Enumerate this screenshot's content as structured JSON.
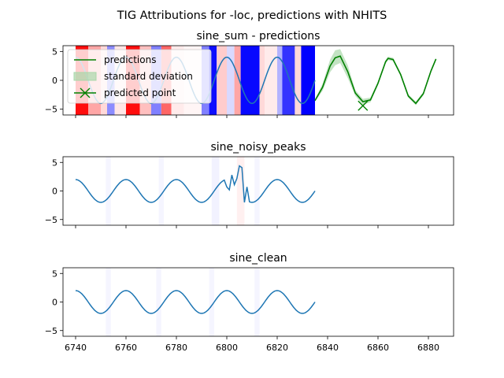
{
  "suptitle": "TIG Attributions for -loc, predictions with NHITS",
  "colors": {
    "series": "#1f77b4",
    "prediction": "#008000",
    "band": "#a9d7a9",
    "positive_attr": "#0000ff",
    "negative_attr": "#ff0000"
  },
  "chart_data": [
    {
      "type": "line",
      "title": "sine_sum - predictions",
      "xlim": [
        6735,
        6890
      ],
      "ylim": [
        -6,
        6
      ],
      "yticks": [
        -5,
        0,
        5
      ],
      "xticks": [
        6740,
        6760,
        6780,
        6800,
        6820,
        6840,
        6860,
        6880
      ],
      "show_xtick_labels": false,
      "legend": {
        "placement": "top-left",
        "entries": [
          "predictions",
          "standard deviation",
          "predicted point"
        ]
      },
      "series": [
        {
          "role": "history",
          "x_start": 6740,
          "x_end": 6835,
          "amplitude": 4.0,
          "period": 20,
          "phase_x": 6735
        },
        {
          "name": "predictions",
          "role": "forecast",
          "x": [
            6835,
            6838,
            6841,
            6843,
            6845,
            6848,
            6851,
            6854,
            6857,
            6860,
            6863,
            6864,
            6866,
            6869,
            6872,
            6875,
            6878,
            6881,
            6883
          ],
          "values": [
            -3.5,
            -1.2,
            2.5,
            3.9,
            4.2,
            1.5,
            -2.2,
            -3.7,
            -3.4,
            -0.5,
            3.2,
            3.8,
            3.6,
            1.0,
            -2.7,
            -4.0,
            -2.3,
            1.6,
            3.7
          ]
        },
        {
          "name": "standard deviation",
          "role": "band",
          "x": [
            6835,
            6838,
            6841,
            6843,
            6845,
            6848,
            6851,
            6854,
            6857,
            6860,
            6863,
            6864,
            6866,
            6869,
            6872,
            6875,
            6878,
            6881,
            6883
          ],
          "upper": [
            -3.3,
            -0.6,
            3.6,
            5.2,
            5.4,
            2.6,
            -1.7,
            -3.2,
            -3.0,
            -0.2,
            3.5,
            4.1,
            3.9,
            1.3,
            -2.4,
            -3.7,
            -2.0,
            1.9,
            3.9
          ],
          "lower": [
            -3.7,
            -1.8,
            1.4,
            2.6,
            3.0,
            0.4,
            -2.7,
            -4.2,
            -3.8,
            -0.8,
            2.9,
            3.5,
            3.3,
            0.7,
            -3.0,
            -4.3,
            -2.6,
            1.3,
            3.5
          ]
        },
        {
          "name": "predicted point",
          "role": "marker",
          "x": [
            6854
          ],
          "values": [
            -4.4
          ]
        }
      ],
      "attributions": {
        "x_start": 6740,
        "x_end": 6835,
        "bands": [
          {
            "from": 6740.0,
            "to": 6745.0,
            "sign": "negative",
            "strength": 0.95
          },
          {
            "from": 6745.0,
            "to": 6750.0,
            "sign": "negative",
            "strength": 0.35
          },
          {
            "from": 6750.0,
            "to": 6752.5,
            "sign": "negative",
            "strength": 0.15
          },
          {
            "from": 6752.5,
            "to": 6755.5,
            "sign": "positive",
            "strength": 0.45
          },
          {
            "from": 6755.5,
            "to": 6760.0,
            "sign": "negative",
            "strength": 0.1
          },
          {
            "from": 6760.0,
            "to": 6765.5,
            "sign": "negative",
            "strength": 0.95
          },
          {
            "from": 6765.5,
            "to": 6770.0,
            "sign": "negative",
            "strength": 0.25
          },
          {
            "from": 6770.0,
            "to": 6774.0,
            "sign": "positive",
            "strength": 0.5
          },
          {
            "from": 6774.0,
            "to": 6778.0,
            "sign": "negative",
            "strength": 0.6
          },
          {
            "from": 6778.0,
            "to": 6783.0,
            "sign": "negative",
            "strength": 0.08
          },
          {
            "from": 6783.0,
            "to": 6790.0,
            "sign": "negative",
            "strength": 0.04
          },
          {
            "from": 6790.0,
            "to": 6793.0,
            "sign": "positive",
            "strength": 0.5
          },
          {
            "from": 6793.0,
            "to": 6796.0,
            "sign": "positive",
            "strength": 0.95
          },
          {
            "from": 6796.0,
            "to": 6800.0,
            "sign": "negative",
            "strength": 0.2
          },
          {
            "from": 6800.0,
            "to": 6803.0,
            "sign": "positive",
            "strength": 0.15
          },
          {
            "from": 6803.0,
            "to": 6805.5,
            "sign": "negative",
            "strength": 0.35
          },
          {
            "from": 6805.5,
            "to": 6813.0,
            "sign": "positive",
            "strength": 0.97
          },
          {
            "from": 6813.0,
            "to": 6815.0,
            "sign": "negative",
            "strength": 0.15
          },
          {
            "from": 6815.0,
            "to": 6820.0,
            "sign": "negative",
            "strength": 0.08
          },
          {
            "from": 6820.0,
            "to": 6822.0,
            "sign": "positive",
            "strength": 0.3
          },
          {
            "from": 6822.0,
            "to": 6827.0,
            "sign": "positive",
            "strength": 0.8
          },
          {
            "from": 6827.0,
            "to": 6829.5,
            "sign": "negative",
            "strength": 0.15
          },
          {
            "from": 6829.5,
            "to": 6835.0,
            "sign": "positive",
            "strength": 1.0
          }
        ]
      }
    },
    {
      "type": "line",
      "title": "sine_noisy_peaks",
      "xlim": [
        6735,
        6890
      ],
      "ylim": [
        -6,
        6
      ],
      "yticks": [
        -5,
        0,
        5
      ],
      "xticks": [
        6740,
        6760,
        6780,
        6800,
        6820,
        6840,
        6860,
        6880
      ],
      "show_xtick_labels": false,
      "series": [
        {
          "role": "history",
          "x_start": 6740,
          "x_end": 6835,
          "amplitude": 2.0,
          "period": 20,
          "phase_x": 6735,
          "spikes": [
            {
              "x": 6800,
              "y": 0.7
            },
            {
              "x": 6801,
              "y": 0.2
            },
            {
              "x": 6802,
              "y": 2.8
            },
            {
              "x": 6803,
              "y": 1.1
            },
            {
              "x": 6804,
              "y": 2.2
            },
            {
              "x": 6805,
              "y": 4.4
            },
            {
              "x": 6806,
              "y": 4.1
            },
            {
              "x": 6807,
              "y": -2.0
            },
            {
              "x": 6808,
              "y": 0.7
            }
          ]
        }
      ],
      "attributions": {
        "x_start": 6740,
        "x_end": 6835,
        "bands": [
          {
            "from": 6752.0,
            "to": 6754.0,
            "sign": "positive",
            "strength": 0.04
          },
          {
            "from": 6773.0,
            "to": 6775.0,
            "sign": "positive",
            "strength": 0.04
          },
          {
            "from": 6794.0,
            "to": 6797.0,
            "sign": "positive",
            "strength": 0.05
          },
          {
            "from": 6804.0,
            "to": 6807.0,
            "sign": "negative",
            "strength": 0.06
          },
          {
            "from": 6811.0,
            "to": 6813.0,
            "sign": "positive",
            "strength": 0.04
          }
        ]
      }
    },
    {
      "type": "line",
      "title": "sine_clean",
      "xlim": [
        6735,
        6890
      ],
      "ylim": [
        -6,
        6
      ],
      "yticks": [
        -5,
        0,
        5
      ],
      "xticks": [
        6740,
        6760,
        6780,
        6800,
        6820,
        6840,
        6860,
        6880
      ],
      "show_xtick_labels": true,
      "series": [
        {
          "role": "history",
          "x_start": 6740,
          "x_end": 6835,
          "amplitude": 2.0,
          "period": 20,
          "phase_x": 6735
        }
      ],
      "attributions": {
        "x_start": 6740,
        "x_end": 6835,
        "bands": [
          {
            "from": 6752.0,
            "to": 6754.0,
            "sign": "positive",
            "strength": 0.04
          },
          {
            "from": 6772.0,
            "to": 6774.0,
            "sign": "positive",
            "strength": 0.04
          },
          {
            "from": 6793.0,
            "to": 6795.0,
            "sign": "positive",
            "strength": 0.04
          },
          {
            "from": 6811.0,
            "to": 6813.0,
            "sign": "positive",
            "strength": 0.04
          }
        ]
      }
    }
  ]
}
